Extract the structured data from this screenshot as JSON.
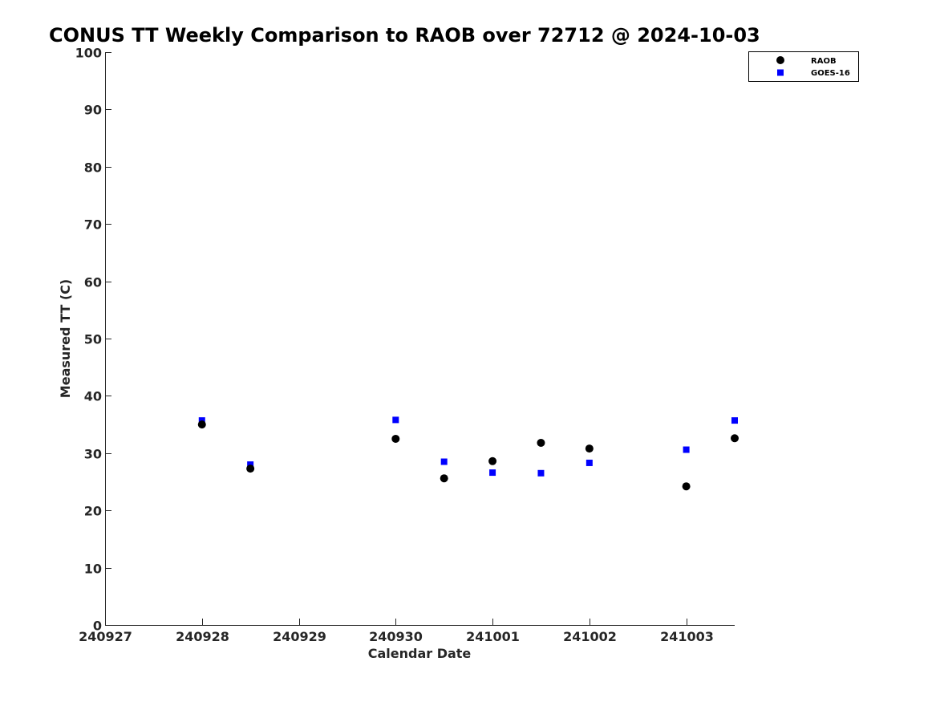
{
  "chart_data": {
    "type": "scatter",
    "title": "CONUS TT Weekly Comparison to RAOB over 72712 @ 2024-10-03",
    "xlabel": "Calendar Date",
    "ylabel": "Measured TT (C)",
    "x_ticks": [
      "240927",
      "240928",
      "240929",
      "240930",
      "241001",
      "241002",
      "241003"
    ],
    "xlim": [
      "240927",
      "241003.5"
    ],
    "ylim": [
      0,
      100
    ],
    "y_ticks": [
      0,
      10,
      20,
      30,
      40,
      50,
      60,
      70,
      80,
      90,
      100
    ],
    "grid": false,
    "legend_position": "top-right",
    "series": [
      {
        "name": "RAOB",
        "marker": "circle",
        "color": "#000000",
        "points": [
          {
            "x": "240928.0",
            "y": 35.0
          },
          {
            "x": "240928.5",
            "y": 27.3
          },
          {
            "x": "240930.0",
            "y": 32.5
          },
          {
            "x": "240930.5",
            "y": 25.6
          },
          {
            "x": "241001.0",
            "y": 28.6
          },
          {
            "x": "241001.5",
            "y": 31.8
          },
          {
            "x": "241002.0",
            "y": 30.8
          },
          {
            "x": "241003.0",
            "y": 24.2
          },
          {
            "x": "241003.5",
            "y": 32.6
          }
        ]
      },
      {
        "name": "GOES-16",
        "marker": "square",
        "color": "#0000ff",
        "points": [
          {
            "x": "240928.0",
            "y": 35.7
          },
          {
            "x": "240928.5",
            "y": 28.0
          },
          {
            "x": "240930.0",
            "y": 35.8
          },
          {
            "x": "240930.5",
            "y": 28.5
          },
          {
            "x": "241001.0",
            "y": 26.6
          },
          {
            "x": "241001.5",
            "y": 26.5
          },
          {
            "x": "241002.0",
            "y": 28.3
          },
          {
            "x": "241003.0",
            "y": 30.6
          },
          {
            "x": "241003.5",
            "y": 35.7
          }
        ]
      }
    ]
  }
}
